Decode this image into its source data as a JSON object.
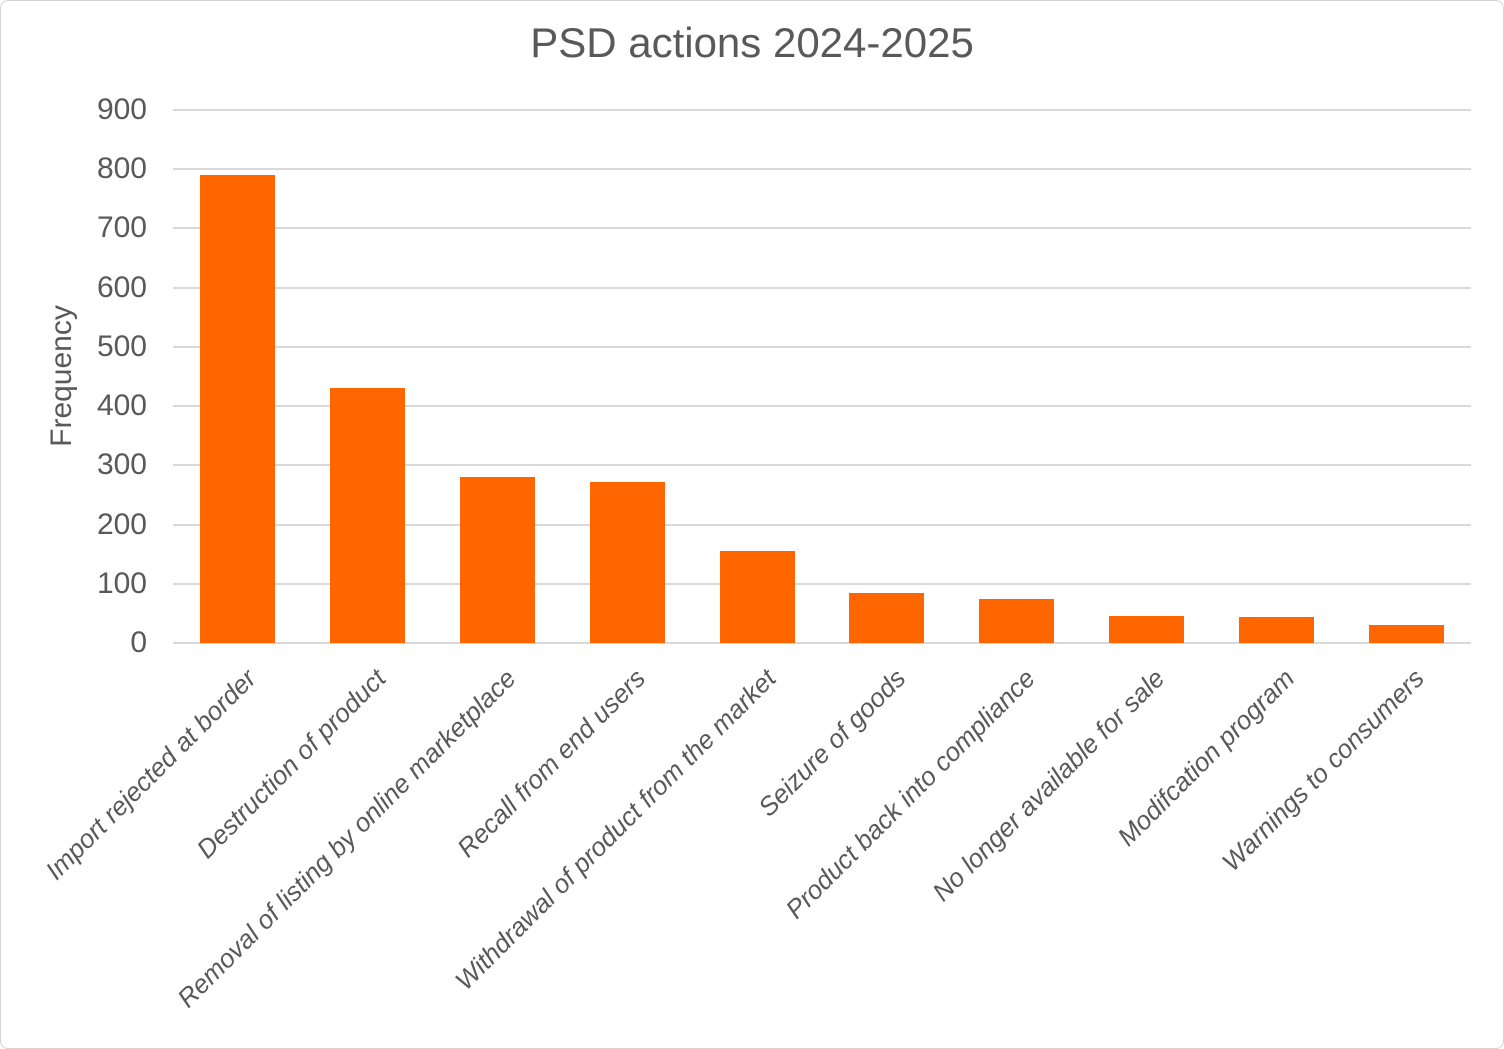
{
  "chart_data": {
    "type": "bar",
    "title": "PSD actions 2024-2025",
    "xlabel": "",
    "ylabel": "Frequency",
    "categories": [
      "Import rejected at border",
      "Destruction of product",
      "Removal of listing by online marketplace",
      "Recall from end users",
      "Withdrawal of product from the market",
      "Seizure of goods",
      "Product back into compliance",
      "No longer available for sale",
      "Modifcation program",
      "Warnings to consumers"
    ],
    "values": [
      790,
      430,
      280,
      272,
      155,
      84,
      75,
      46,
      44,
      30
    ],
    "ylim": [
      0,
      900
    ],
    "ytick_step": 100,
    "grid": "horizontal",
    "legend": "none",
    "bar_color": "#FF6600",
    "gridline_color": "#D9D9D9",
    "text_color": "#595959",
    "background_color": "#FFFFFF",
    "x_label_style": "italic-rotated-45"
  }
}
